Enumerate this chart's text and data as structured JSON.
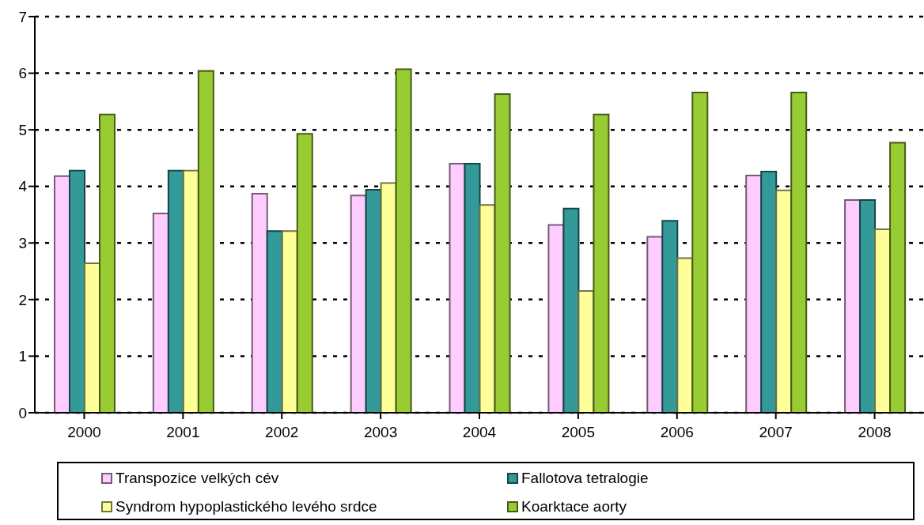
{
  "chart_data": {
    "type": "bar",
    "categories": [
      "2000",
      "2001",
      "2002",
      "2003",
      "2004",
      "2005",
      "2006",
      "2007",
      "2008"
    ],
    "series": [
      {
        "name": "Transpozice velkých cév",
        "color": "#ffccff",
        "values": [
          4.18,
          3.52,
          3.87,
          3.84,
          4.4,
          3.32,
          3.11,
          4.19,
          3.76
        ]
      },
      {
        "name": "Fallotova tetralogie",
        "color": "#339999",
        "values": [
          4.28,
          4.28,
          3.21,
          3.94,
          4.4,
          3.61,
          3.39,
          4.26,
          3.76
        ]
      },
      {
        "name": "Syndrom hypoplastického levého srdce",
        "color": "#ffff99",
        "values": [
          2.64,
          4.28,
          3.21,
          4.06,
          3.67,
          2.15,
          2.73,
          3.93,
          3.24
        ]
      },
      {
        "name": "Koarktace aorty",
        "color": "#99cc33",
        "values": [
          5.27,
          6.04,
          4.93,
          6.07,
          5.63,
          5.27,
          5.66,
          5.66,
          4.77
        ]
      }
    ],
    "ylim": [
      0,
      7
    ],
    "yticks": [
      0,
      1,
      2,
      3,
      4,
      5,
      6,
      7
    ],
    "grid": "y",
    "legend": "bottom"
  }
}
